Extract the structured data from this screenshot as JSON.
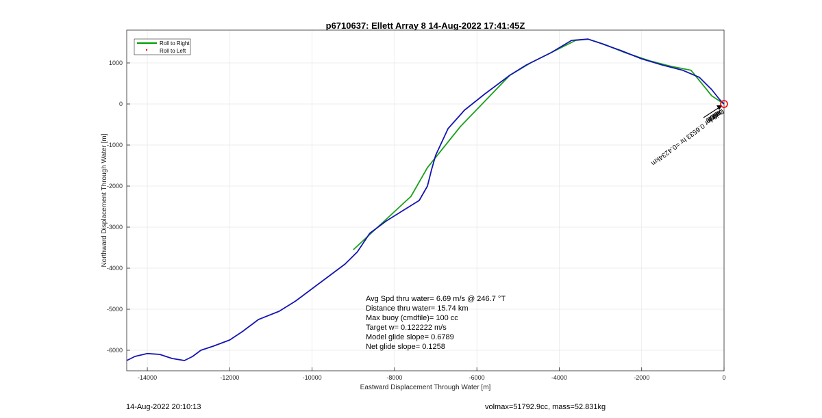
{
  "footer": {
    "left": "14-Aug-2022 20:10:13",
    "right": "volmax=51792.9cc, mass=52.831kg"
  },
  "chart_data": {
    "type": "line",
    "title": "p6710637: Ellett Array 8 14-Aug-2022 17:41:45Z",
    "xlabel": "Eastward Displacement Through Water [m]",
    "ylabel": "Northward Displacement Through Water [m]",
    "xlim": [
      -14500,
      0
    ],
    "ylim": [
      -6500,
      1800
    ],
    "xticks": [
      -14000,
      -12000,
      -10000,
      -8000,
      -6000,
      -4000,
      -2000,
      0
    ],
    "yticks": [
      -6000,
      -5000,
      -4000,
      -3000,
      -2000,
      -1000,
      0,
      1000
    ],
    "grid": true,
    "legend": {
      "placement": "top-left",
      "entries": [
        {
          "label": "Roll to Right",
          "color": "#00a000",
          "style": "line"
        },
        {
          "label": "Roll to Left",
          "color": "#ff0000",
          "style": "marker"
        }
      ]
    },
    "series": [
      {
        "name": "Roll to Right",
        "color": "#1aa01a",
        "x": [
          -9000,
          -8300,
          -7600,
          -7200,
          -6400,
          -5200,
          -4700,
          -4200,
          -3600,
          -3300,
          -2900,
          -2400,
          -1800,
          -1300,
          -800,
          -300,
          0
        ],
        "y": [
          -3550,
          -2900,
          -2250,
          -1550,
          -550,
          700,
          1000,
          1250,
          1550,
          1580,
          1450,
          1250,
          1050,
          920,
          820,
          200,
          0
        ]
      },
      {
        "name": "",
        "color": "#1414b4",
        "x": [
          -14500,
          -14300,
          -14000,
          -13700,
          -13400,
          -13100,
          -12900,
          -12700,
          -12400,
          -12000,
          -11700,
          -11300,
          -10800,
          -10400,
          -10000,
          -9600,
          -9200,
          -8900,
          -8600,
          -8200,
          -7800,
          -7400,
          -7200,
          -7100,
          -7000,
          -6700,
          -6300,
          -5800,
          -5200,
          -4800,
          -4200,
          -3700,
          -3300,
          -3000,
          -2500,
          -2000,
          -1500,
          -1000,
          -600,
          -300,
          -100,
          0
        ],
        "y": [
          -6250,
          -6150,
          -6080,
          -6100,
          -6200,
          -6250,
          -6150,
          -6000,
          -5900,
          -5750,
          -5550,
          -5250,
          -5050,
          -4800,
          -4500,
          -4200,
          -3900,
          -3600,
          -3150,
          -2850,
          -2600,
          -2350,
          -2000,
          -1600,
          -1250,
          -600,
          -150,
          250,
          700,
          950,
          1250,
          1550,
          1580,
          1480,
          1300,
          1100,
          950,
          820,
          650,
          350,
          100,
          0
        ]
      }
    ],
    "annotations": [
      "Avg Spd thru water=  6.69 m/s @ 246.7 °T",
      "Distance thru water= 15.74 km",
      "Max buoy (cmdfile)= 100 cc",
      "Target w= 0.122222 m/s",
      "Model glide slope= 0.6789",
      "Net glide slope= 0.1258"
    ],
    "drift_label": "Drift for 0.6533 hr =0.4234km",
    "drift_overlap_labels": [
      "0.0.0",
      "0.0.0",
      "0.0.0",
      "0.0.0"
    ],
    "end_marker": {
      "x": 0,
      "y": 0,
      "color": "#ff0000"
    }
  }
}
